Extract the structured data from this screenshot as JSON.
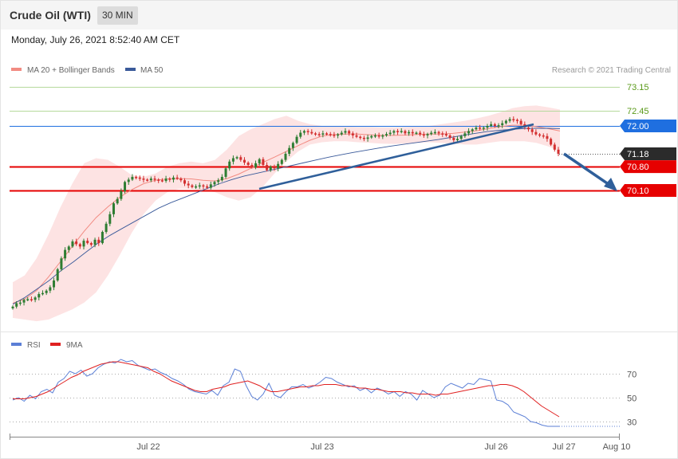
{
  "header": {
    "instrument": "Crude Oil (WTI)",
    "timeframe": "30 MIN",
    "datetime": "Monday, July 26, 2021 8:52:40 AM CET"
  },
  "legend_main": [
    {
      "label": "MA 20 + Bollinger Bands",
      "color": "#f28b82"
    },
    {
      "label": "MA 50",
      "color": "#3a5a9a"
    }
  ],
  "legend_rsi": [
    {
      "label": "RSI",
      "color": "#5b7fd6"
    },
    {
      "label": "9MA",
      "color": "#e02020"
    }
  ],
  "credit": "Research © 2021 Trading Central",
  "colors": {
    "up_candle": "#2e7d32",
    "down_candle": "#d32f2f",
    "support": "#e60000",
    "pivot": "#1f6fe0",
    "resistance_line": "#b5d99c",
    "resistance_text": "#5a9a1a",
    "band_fill": "#fde3e3",
    "arrow": "#2f5f9a"
  },
  "chart_data": [
    {
      "type": "line",
      "title": "",
      "x_tick_labels": [
        "Jul 22",
        "Jul 23",
        "Jul 26",
        "Jul 27",
        "Aug 10"
      ],
      "price_levels": [
        {
          "value": 73.15,
          "label": "73.15",
          "kind": "resistance"
        },
        {
          "value": 72.45,
          "label": "72.45",
          "kind": "resistance"
        },
        {
          "value": 72.0,
          "label": "72.00",
          "kind": "pivot"
        },
        {
          "value": 71.18,
          "label": "71.18",
          "kind": "last"
        },
        {
          "value": 70.8,
          "label": "70.80",
          "kind": "support"
        },
        {
          "value": 70.1,
          "label": "70.10",
          "kind": "support"
        }
      ],
      "ylim": [
        66.2,
        73.4
      ],
      "series": [
        {
          "name": "MA 20 + Bollinger Bands"
        },
        {
          "name": "MA 50"
        }
      ],
      "close": [
        66.68,
        66.78,
        66.8,
        66.88,
        66.9,
        66.88,
        66.95,
        67.05,
        67.08,
        67.15,
        67.25,
        67.45,
        67.78,
        68.1,
        68.35,
        68.45,
        68.6,
        68.52,
        68.45,
        68.62,
        68.55,
        68.5,
        68.65,
        68.55,
        68.88,
        69.12,
        69.4,
        69.72,
        69.85,
        70.08,
        70.35,
        70.42,
        70.5,
        70.48,
        70.45,
        70.42,
        70.4,
        70.45,
        70.42,
        70.4,
        70.38,
        70.45,
        70.42,
        70.48,
        70.45,
        70.4,
        70.3,
        70.25,
        70.2,
        70.22,
        70.25,
        70.22,
        70.18,
        70.28,
        70.35,
        70.4,
        70.5,
        70.75,
        70.95,
        71.05,
        71.08,
        71.0,
        70.92,
        70.85,
        70.78,
        70.9,
        71.02,
        70.85,
        70.7,
        70.8,
        70.75,
        70.88,
        71.0,
        71.18,
        71.35,
        71.5,
        71.68,
        71.8,
        71.85,
        71.82,
        71.78,
        71.76,
        71.75,
        71.78,
        71.76,
        71.74,
        71.72,
        71.75,
        71.8,
        71.85,
        71.78,
        71.72,
        71.68,
        71.65,
        71.62,
        71.66,
        71.7,
        71.72,
        71.7,
        71.72,
        71.76,
        71.8,
        71.85,
        71.82,
        71.85,
        71.78,
        71.82,
        71.78,
        71.8,
        71.75,
        71.72,
        71.76,
        71.8,
        71.82,
        71.78,
        71.76,
        71.72,
        71.65,
        71.58,
        71.62,
        71.7,
        71.78,
        71.85,
        71.9,
        71.95,
        71.92,
        71.95,
        72.0,
        72.05,
        72.0,
        72.02,
        72.08,
        72.15,
        72.2,
        72.18,
        72.15,
        72.05,
        71.95,
        71.9,
        71.82,
        71.75,
        71.72,
        71.7,
        71.62,
        71.45,
        71.3,
        71.18
      ],
      "ma50": [
        66.75,
        66.95,
        67.2,
        67.45,
        67.75,
        68.0,
        68.28,
        68.55,
        68.78,
        68.98,
        69.18,
        69.38,
        69.58,
        69.74,
        69.88,
        70.02,
        70.16,
        70.3,
        70.42,
        70.52,
        70.6,
        70.68,
        70.76,
        70.84,
        70.92,
        71.0,
        71.08,
        71.15,
        71.22,
        71.28,
        71.34,
        71.4,
        71.45,
        71.5,
        71.55,
        71.6,
        71.66,
        71.72,
        71.78,
        71.83,
        71.87,
        71.9,
        71.92,
        71.93,
        71.93,
        71.92
      ],
      "ma20": [
        66.78,
        66.9,
        67.15,
        67.55,
        68.0,
        68.45,
        68.9,
        69.3,
        69.62,
        69.9,
        70.12,
        70.3,
        70.4,
        70.44,
        70.45,
        70.44,
        70.4,
        70.38,
        70.45,
        70.58,
        70.75,
        70.92,
        71.08,
        71.25,
        71.42,
        71.58,
        71.7,
        71.75,
        71.76,
        71.76,
        71.74,
        71.72,
        71.72,
        71.73,
        71.75,
        71.76,
        71.76,
        71.78,
        71.82,
        71.86,
        71.92,
        71.98,
        72.02,
        72.02,
        71.98,
        71.92,
        71.85
      ],
      "bb_upper": [
        67.4,
        67.6,
        68.1,
        68.8,
        69.6,
        70.3,
        70.9,
        71.05,
        71.0,
        70.8,
        70.55,
        70.5,
        70.6,
        70.8,
        70.9,
        70.95,
        70.9,
        71.0,
        71.3,
        71.7,
        71.9,
        72.05,
        72.2,
        72.3,
        72.15,
        72.05,
        72.0,
        71.98,
        71.98,
        71.97,
        71.97,
        71.96,
        71.96,
        71.97,
        71.98,
        72.0,
        72.05,
        72.1,
        72.15,
        72.22,
        72.3,
        72.4,
        72.52,
        72.58,
        72.6,
        72.55,
        72.48
      ],
      "bb_lower": [
        66.35,
        66.3,
        66.25,
        66.3,
        66.45,
        66.6,
        66.8,
        67.1,
        67.6,
        68.2,
        68.85,
        69.4,
        69.8,
        70.05,
        70.15,
        70.15,
        70.1,
        70.05,
        69.9,
        69.8,
        69.9,
        70.2,
        70.6,
        70.95,
        71.25,
        71.45,
        71.52,
        71.55,
        71.55,
        71.52,
        71.5,
        71.48,
        71.47,
        71.48,
        71.5,
        71.52,
        71.5,
        71.48,
        71.45,
        71.45,
        71.5,
        71.55,
        71.55,
        71.55,
        71.5,
        71.4,
        71.25
      ]
    },
    {
      "type": "line",
      "title": "",
      "x_tick_labels": [
        "Jul 22",
        "Jul 23",
        "Jul 26",
        "Jul 27",
        "Aug 10"
      ],
      "y_ticks": [
        "70",
        "50",
        "30"
      ],
      "ylim": [
        20,
        85
      ],
      "series": [
        {
          "name": "RSI",
          "values": [
            48,
            50,
            47,
            52,
            49,
            55,
            57,
            54,
            63,
            66,
            72,
            70,
            73,
            68,
            70,
            75,
            78,
            80,
            79,
            82,
            80,
            81,
            77,
            75,
            73,
            74,
            71,
            69,
            66,
            64,
            61,
            57,
            55,
            54,
            53,
            56,
            52,
            60,
            63,
            74,
            72,
            60,
            51,
            48,
            53,
            62,
            52,
            50,
            55,
            59,
            59,
            61,
            58,
            60,
            63,
            67,
            66,
            63,
            61,
            59,
            60,
            56,
            58,
            54,
            58,
            56,
            53,
            55,
            51,
            55,
            53,
            48,
            56,
            53,
            50,
            52,
            59,
            62,
            60,
            58,
            62,
            61,
            66,
            65,
            64,
            48,
            47,
            44,
            38,
            36,
            34,
            30,
            29,
            27,
            26,
            26,
            26
          ]
        },
        {
          "name": "9MA",
          "values": [
            49,
            49,
            49,
            50,
            51,
            53,
            55,
            58,
            61,
            64,
            67,
            69,
            72,
            74,
            76,
            78,
            79,
            80,
            80,
            79,
            78,
            77,
            76,
            75,
            72,
            70,
            67,
            64,
            62,
            60,
            58,
            56,
            55,
            55,
            57,
            58,
            59,
            61,
            62,
            63,
            64,
            62,
            60,
            57,
            55,
            55,
            56,
            57,
            58,
            59,
            59,
            60,
            60,
            61,
            61,
            61,
            60,
            60,
            59,
            58,
            58,
            57,
            57,
            56,
            55,
            55,
            55,
            54,
            54,
            53,
            53,
            53,
            52,
            53,
            53,
            54,
            55,
            56,
            57,
            58,
            59,
            60,
            60,
            61,
            61,
            60,
            58,
            55,
            51,
            47,
            43,
            40,
            37,
            34
          ]
        }
      ]
    }
  ]
}
